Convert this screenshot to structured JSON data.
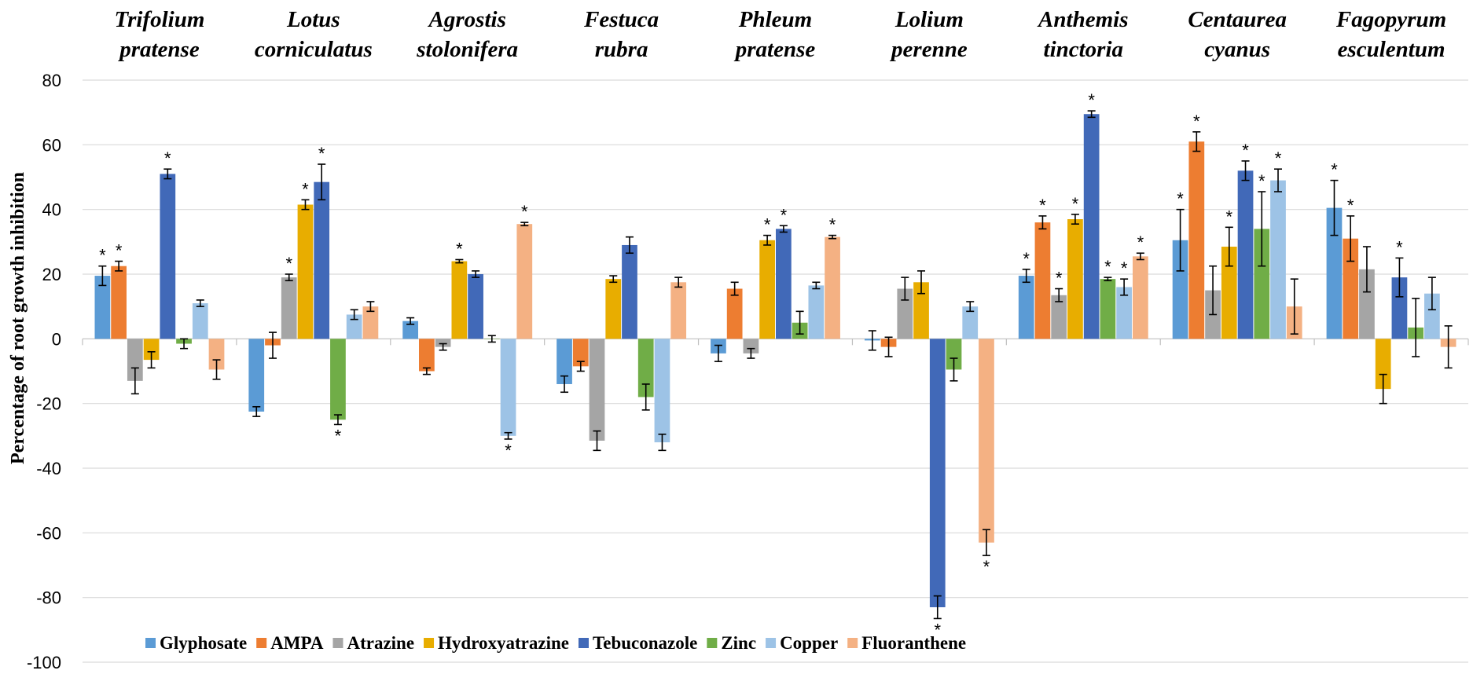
{
  "chart_data": {
    "type": "bar",
    "title": "",
    "xlabel": "",
    "ylabel": "Percentage of root growth inhibition",
    "ylim": [
      -100,
      80
    ],
    "yticks": [
      80,
      60,
      40,
      20,
      0,
      -20,
      -40,
      -60,
      -80,
      -100
    ],
    "grid": true,
    "legend_position": "bottom",
    "categories": [
      [
        "Trifolium",
        "pratense"
      ],
      [
        "Lotus",
        "corniculatus"
      ],
      [
        "Agrostis",
        "stolonifera"
      ],
      [
        "Festuca",
        "rubra"
      ],
      [
        "Phleum",
        "pratense"
      ],
      [
        "Lolium",
        "perenne"
      ],
      [
        "Anthemis",
        "tinctoria"
      ],
      [
        "Centaurea",
        "cyanus"
      ],
      [
        "Fagopyrum",
        "esculentum"
      ]
    ],
    "series": [
      {
        "name": "Glyphosate",
        "color": "#5b9bd5",
        "values": [
          19.5,
          -22.5,
          5.5,
          -14,
          -4.5,
          -0.5,
          19.5,
          30.5,
          40.5
        ],
        "errors": [
          3,
          1.5,
          1,
          2.5,
          2.5,
          3,
          2,
          9.5,
          8.5
        ],
        "sig": [
          true,
          false,
          false,
          false,
          false,
          false,
          true,
          true,
          true
        ]
      },
      {
        "name": "AMPA",
        "color": "#ed7d31",
        "values": [
          22.5,
          -2,
          -10,
          -8.5,
          15.5,
          -2.5,
          36,
          61,
          31
        ],
        "errors": [
          1.5,
          4,
          1,
          1.5,
          2,
          3,
          2,
          3,
          7
        ],
        "sig": [
          true,
          false,
          false,
          false,
          false,
          false,
          true,
          true,
          true
        ]
      },
      {
        "name": "Atrazine",
        "color": "#a5a5a5",
        "values": [
          -13,
          19,
          -2.5,
          -31.5,
          -4.5,
          15.5,
          13.5,
          15,
          21.5
        ],
        "errors": [
          4,
          1,
          1,
          3,
          1.5,
          3.5,
          2,
          7.5,
          7
        ],
        "sig": [
          false,
          true,
          false,
          false,
          false,
          false,
          true,
          false,
          false
        ]
      },
      {
        "name": "Hydroxyatrazine",
        "color": "#e8ad00",
        "values": [
          -6.5,
          41.5,
          24,
          18.5,
          30.5,
          17.5,
          37,
          28.5,
          -15.5
        ],
        "errors": [
          2.5,
          1.5,
          0.5,
          1,
          1.5,
          3.5,
          1.5,
          6,
          4.5
        ],
        "sig": [
          false,
          true,
          true,
          false,
          true,
          false,
          true,
          true,
          false
        ]
      },
      {
        "name": "Tebuconazole",
        "color": "#4169b8",
        "values": [
          51,
          48.5,
          20,
          29,
          34,
          -83,
          69.5,
          52,
          19
        ],
        "errors": [
          1.5,
          5.5,
          1,
          2.5,
          1,
          3.5,
          1,
          3,
          6
        ],
        "sig": [
          true,
          true,
          false,
          false,
          true,
          true,
          true,
          true,
          true
        ]
      },
      {
        "name": "Zinc",
        "color": "#70ad47",
        "values": [
          -1.5,
          -25,
          0,
          -18,
          5,
          -9.5,
          18.5,
          34,
          3.5
        ],
        "errors": [
          1.5,
          1.5,
          1,
          4,
          3.5,
          3.5,
          0.5,
          11.5,
          9
        ],
        "sig": [
          false,
          true,
          false,
          false,
          false,
          false,
          true,
          true,
          false
        ]
      },
      {
        "name": "Copper",
        "color": "#9dc3e6",
        "values": [
          11,
          7.5,
          -30,
          -32,
          16.5,
          10,
          16,
          49,
          14
        ],
        "errors": [
          1,
          1.5,
          1,
          2.5,
          1,
          1.5,
          2.5,
          3.5,
          5
        ],
        "sig": [
          false,
          false,
          true,
          false,
          false,
          false,
          true,
          true,
          false
        ]
      },
      {
        "name": "Fluoranthene",
        "color": "#f4b183",
        "values": [
          -9.5,
          10,
          35.5,
          17.5,
          31.5,
          -63,
          25.5,
          10,
          -2.5
        ],
        "errors": [
          3,
          1.5,
          0.5,
          1.5,
          0.5,
          4,
          1,
          8.5,
          6.5
        ],
        "sig": [
          false,
          false,
          true,
          false,
          true,
          true,
          true,
          false,
          false
        ]
      }
    ],
    "significance_marker": "*"
  }
}
